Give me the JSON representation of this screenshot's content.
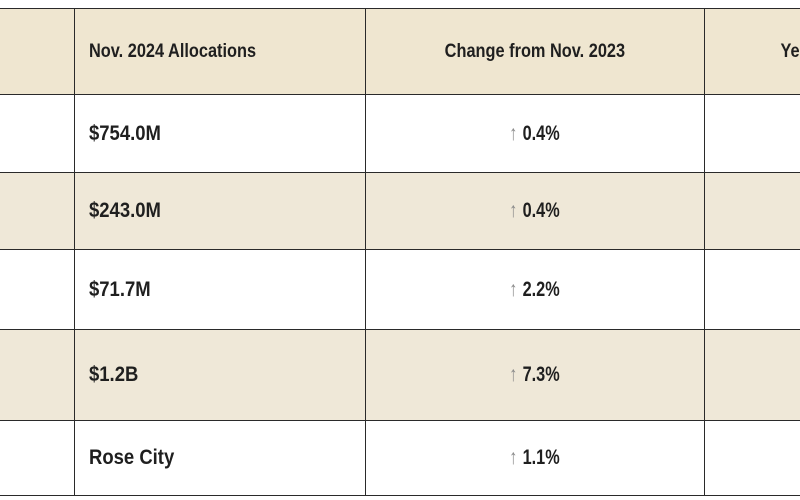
{
  "colors": {
    "shaded_row": "#efe8d8",
    "plain_row": "#ffffff",
    "header_row": "#efe6d0",
    "grid": "#2a2a2a",
    "arrow": "#8a8a8a"
  },
  "header": {
    "col0": "",
    "col1": "Nov. 2024 Allocations",
    "col2": "Change from Nov. 2023",
    "col3": "Ye"
  },
  "rows": [
    {
      "name": "",
      "allocation": "$754.0M",
      "arrow": "↑",
      "change": "0.4%",
      "year": ""
    },
    {
      "name": "",
      "allocation": "$243.0M",
      "arrow": "↑",
      "change": "0.4%",
      "year": ""
    },
    {
      "name": "",
      "allocation": "$71.7M",
      "arrow": "↑",
      "change": "2.2%",
      "year": ""
    },
    {
      "name": "",
      "allocation": "$1.2B",
      "arrow": "↑",
      "change": "7.3%",
      "year": ""
    },
    {
      "name": "",
      "allocation": "Rose City",
      "arrow": "↑",
      "change": "1.1%",
      "year": ""
    }
  ]
}
